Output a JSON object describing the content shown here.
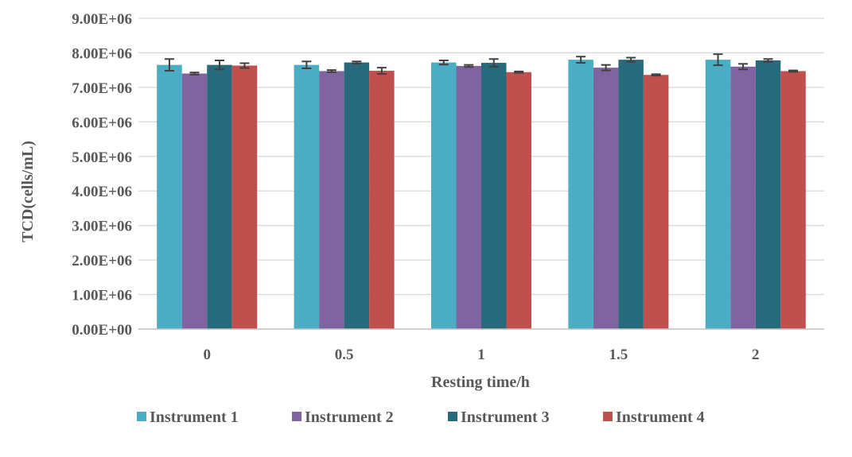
{
  "chart_data": {
    "type": "bar",
    "title": "",
    "xlabel": "Resting time/h",
    "ylabel": "TCD(cells/mL)",
    "ylim": [
      0,
      9000000
    ],
    "y_ticks": [
      0,
      1000000,
      2000000,
      3000000,
      4000000,
      5000000,
      6000000,
      7000000,
      8000000,
      9000000
    ],
    "y_tick_labels": [
      "0.00E+00",
      "1.00E+06",
      "2.00E+06",
      "3.00E+06",
      "4.00E+06",
      "5.00E+06",
      "6.00E+06",
      "7.00E+06",
      "8.00E+06",
      "9.00E+06"
    ],
    "categories": [
      "0",
      "0.5",
      "1",
      "1.5",
      "2"
    ],
    "grid": true,
    "legend_position": "bottom",
    "series": [
      {
        "name": "Instrument 1",
        "color": "#4BACC6",
        "values": [
          7650000,
          7650000,
          7720000,
          7800000,
          7800000
        ],
        "errors": [
          170000,
          100000,
          60000,
          90000,
          160000
        ]
      },
      {
        "name": "Instrument 2",
        "color": "#8064A2",
        "values": [
          7400000,
          7470000,
          7620000,
          7570000,
          7600000
        ],
        "errors": [
          30000,
          30000,
          30000,
          80000,
          80000
        ]
      },
      {
        "name": "Instrument 3",
        "color": "#276A7C",
        "values": [
          7650000,
          7720000,
          7710000,
          7800000,
          7780000
        ],
        "errors": [
          130000,
          30000,
          110000,
          60000,
          40000
        ]
      },
      {
        "name": "Instrument 4",
        "color": "#C0504D",
        "values": [
          7630000,
          7480000,
          7440000,
          7360000,
          7470000
        ],
        "errors": [
          70000,
          90000,
          20000,
          20000,
          20000
        ]
      }
    ]
  }
}
